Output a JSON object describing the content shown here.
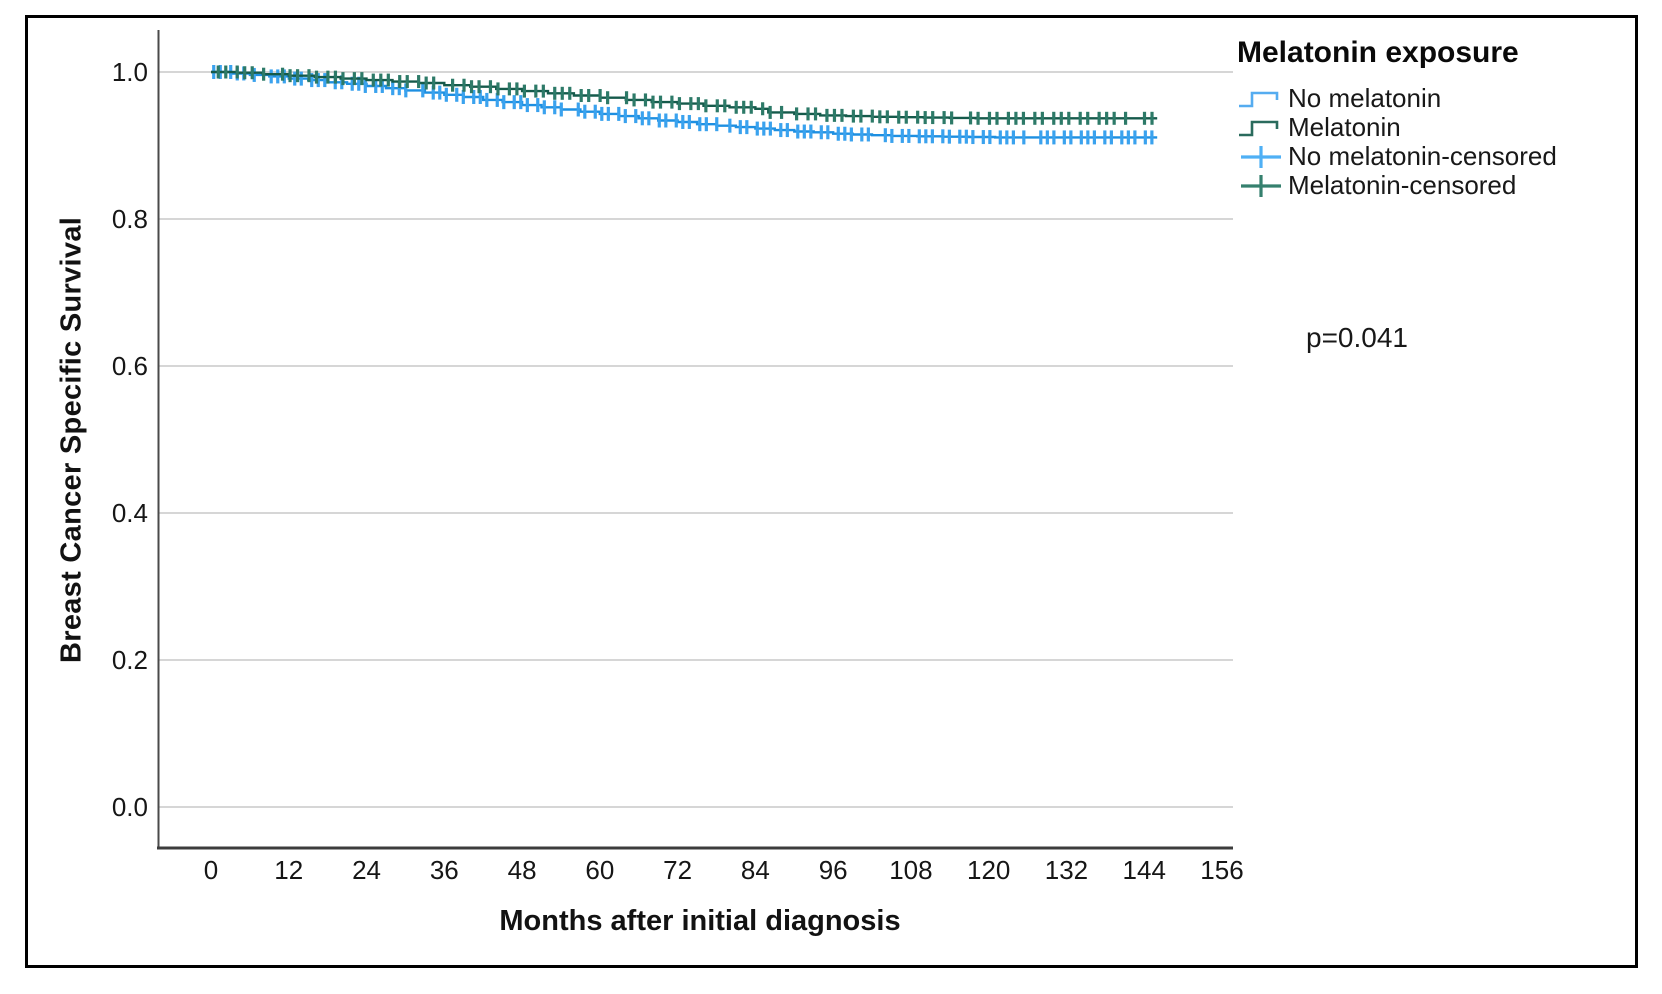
{
  "chart_data": {
    "type": "line",
    "subtype": "kaplan-meier-step-survival",
    "xlabel": "Months after initial diagnosis",
    "ylabel": "Breast Cancer Specific Survival",
    "x_ticks": [
      0,
      12,
      24,
      36,
      48,
      60,
      72,
      84,
      96,
      108,
      120,
      132,
      144,
      156
    ],
    "y_ticks": [
      "1.0",
      "0.8",
      "0.6",
      "0.4",
      "0.2",
      "0.0"
    ],
    "y_tick_values": [
      1.0,
      0.8,
      0.6,
      0.4,
      0.2,
      0.0
    ],
    "xlim": [
      -8,
      158
    ],
    "ylim": [
      -0.05,
      1.05
    ],
    "grid": true,
    "legend_position": "right",
    "series": [
      {
        "name": "No melatonin",
        "color": "#1d8fe1",
        "censor_color": "#3aa2ee",
        "censor_interval_months": 1.25,
        "censor_start_month": 0.3,
        "censor_end_month": 145.4,
        "censor_half_height": 7,
        "steps": [
          [
            0,
            1.0
          ],
          [
            3,
            0.998
          ],
          [
            6,
            0.996
          ],
          [
            9,
            0.994
          ],
          [
            12,
            0.991
          ],
          [
            15,
            0.989
          ],
          [
            18,
            0.986
          ],
          [
            21,
            0.984
          ],
          [
            24,
            0.981
          ],
          [
            27,
            0.978
          ],
          [
            30,
            0.975
          ],
          [
            33,
            0.972
          ],
          [
            36,
            0.969
          ],
          [
            39,
            0.966
          ],
          [
            42,
            0.962
          ],
          [
            45,
            0.959
          ],
          [
            48,
            0.955
          ],
          [
            51,
            0.952
          ],
          [
            54,
            0.949
          ],
          [
            57,
            0.946
          ],
          [
            60,
            0.943
          ],
          [
            63,
            0.94
          ],
          [
            66,
            0.937
          ],
          [
            69,
            0.934
          ],
          [
            72,
            0.932
          ],
          [
            75,
            0.929
          ],
          [
            78,
            0.927
          ],
          [
            81,
            0.925
          ],
          [
            84,
            0.923
          ],
          [
            87,
            0.921
          ],
          [
            90,
            0.919
          ],
          [
            93,
            0.918
          ],
          [
            96,
            0.916
          ],
          [
            99,
            0.915
          ],
          [
            102,
            0.914
          ],
          [
            105,
            0.913
          ],
          [
            109,
            0.9125
          ],
          [
            113,
            0.912
          ],
          [
            117,
            0.9115
          ],
          [
            121,
            0.911
          ],
          [
            146,
            0.911
          ]
        ]
      },
      {
        "name": "Melatonin",
        "color": "#155a4b",
        "censor_color": "#2d7a68",
        "censor_interval_months": 1.4,
        "censor_start_month": 1.0,
        "censor_end_month": 146.2,
        "censor_half_height": 6.5,
        "steps": [
          [
            0,
            1.0
          ],
          [
            4,
            0.999
          ],
          [
            8,
            0.997
          ],
          [
            12,
            0.995
          ],
          [
            16,
            0.993
          ],
          [
            20,
            0.991
          ],
          [
            24,
            0.989
          ],
          [
            28,
            0.987
          ],
          [
            32,
            0.985
          ],
          [
            36,
            0.982
          ],
          [
            40,
            0.98
          ],
          [
            44,
            0.977
          ],
          [
            48,
            0.974
          ],
          [
            52,
            0.971
          ],
          [
            56,
            0.968
          ],
          [
            60,
            0.965
          ],
          [
            64,
            0.962
          ],
          [
            68,
            0.959
          ],
          [
            72,
            0.957
          ],
          [
            76,
            0.954
          ],
          [
            80,
            0.952
          ],
          [
            84,
            0.95
          ],
          [
            86,
            0.945
          ],
          [
            90,
            0.943
          ],
          [
            94,
            0.941
          ],
          [
            98,
            0.94
          ],
          [
            102,
            0.939
          ],
          [
            106,
            0.9385
          ],
          [
            110,
            0.938
          ],
          [
            114,
            0.9375
          ],
          [
            118,
            0.937
          ],
          [
            146,
            0.937
          ]
        ]
      }
    ]
  },
  "legend": {
    "title": "Melatonin exposure",
    "items": [
      {
        "label": "No melatonin",
        "symbol": "step",
        "color": "#55acf0"
      },
      {
        "label": "Melatonin",
        "symbol": "step",
        "color": "#2a6b5d"
      },
      {
        "label": "No melatonin-censored",
        "symbol": "plus",
        "color": "#4fb0f5"
      },
      {
        "label": "Melatonin-censored",
        "symbol": "plus",
        "color": "#35806e"
      }
    ]
  },
  "annotation": {
    "p_value": "p=0.041"
  },
  "colors": {
    "no_melatonin_line": "#1d8fe1",
    "melatonin_line": "#155a4b",
    "gridline": "#c9c9c9",
    "axis": "#3c3c3c",
    "frame_border": "#000000",
    "background": "#ffffff"
  }
}
